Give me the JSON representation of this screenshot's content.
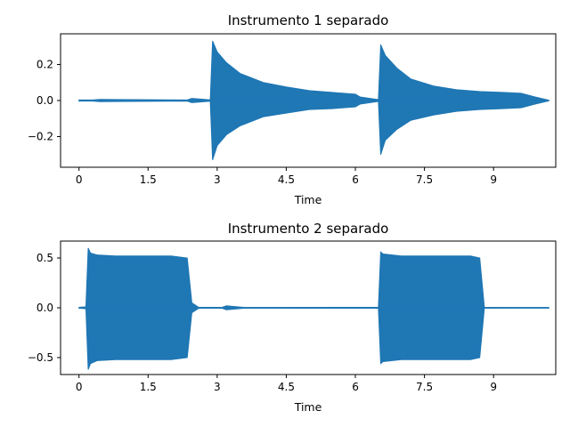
{
  "chart_data": [
    {
      "type": "line",
      "title": "Instrumento 1 separado",
      "xlabel": "Time",
      "ylabel": "",
      "xlim": [
        -0.4,
        10.35
      ],
      "ylim": [
        -0.37,
        0.37
      ],
      "xticks": [
        0,
        1.5,
        3,
        4.5,
        6,
        7.5,
        9
      ],
      "xtick_labels": [
        "0",
        "1.5",
        "3",
        "4.5",
        "6",
        "7.5",
        "9"
      ],
      "yticks": [
        0.2,
        0.0,
        -0.2
      ],
      "ytick_labels": [
        "0.2",
        "0.0",
        "−0.2"
      ],
      "color": "#1f77b4",
      "series": [
        {
          "style": "waveform",
          "x": [
            0,
            0.3,
            0.45,
            2.35,
            2.45,
            2.85,
            2.9,
            3.0,
            3.2,
            3.5,
            4.0,
            4.5,
            5.0,
            5.5,
            6.0,
            6.1,
            6.5,
            6.55,
            6.65,
            6.9,
            7.2,
            7.7,
            8.2,
            8.7,
            9.2,
            9.6,
            9.9,
            10.2
          ],
          "upper": [
            0.003,
            0.003,
            0.006,
            0.003,
            0.012,
            0.004,
            0.33,
            0.27,
            0.21,
            0.15,
            0.1,
            0.075,
            0.055,
            0.045,
            0.035,
            0.02,
            0.005,
            0.31,
            0.25,
            0.18,
            0.12,
            0.08,
            0.06,
            0.05,
            0.045,
            0.04,
            0.02,
            0.002
          ],
          "lower": [
            -0.003,
            -0.003,
            -0.006,
            -0.003,
            -0.012,
            -0.004,
            -0.33,
            -0.25,
            -0.19,
            -0.14,
            -0.09,
            -0.07,
            -0.05,
            -0.045,
            -0.035,
            -0.02,
            -0.005,
            -0.3,
            -0.22,
            -0.16,
            -0.11,
            -0.08,
            -0.06,
            -0.05,
            -0.045,
            -0.04,
            -0.02,
            -0.002
          ]
        }
      ]
    },
    {
      "type": "line",
      "title": "Instrumento 2 separado",
      "xlabel": "Time",
      "ylabel": "",
      "xlim": [
        -0.4,
        10.35
      ],
      "ylim": [
        -0.67,
        0.67
      ],
      "xticks": [
        0,
        1.5,
        3,
        4.5,
        6,
        7.5,
        9
      ],
      "xtick_labels": [
        "0",
        "1.5",
        "3",
        "4.5",
        "6",
        "7.5",
        "9"
      ],
      "yticks": [
        0.5,
        0.0,
        -0.5
      ],
      "ytick_labels": [
        "0.5",
        "0.0",
        "−0.5"
      ],
      "color": "#1f77b4",
      "series": [
        {
          "style": "waveform",
          "x": [
            0,
            0.15,
            0.2,
            0.25,
            0.4,
            0.8,
            1.2,
            1.6,
            2.0,
            2.35,
            2.45,
            2.6,
            3.1,
            3.2,
            3.6,
            6.5,
            6.55,
            6.6,
            7.0,
            7.5,
            8.0,
            8.5,
            8.7,
            8.8,
            9.5,
            10.2
          ],
          "upper": [
            0.004,
            0.01,
            0.6,
            0.55,
            0.53,
            0.52,
            0.52,
            0.52,
            0.52,
            0.5,
            0.05,
            0.004,
            0.004,
            0.02,
            0.003,
            0.005,
            0.56,
            0.54,
            0.52,
            0.52,
            0.52,
            0.52,
            0.5,
            0.005,
            0.003,
            0.003
          ],
          "lower": [
            -0.004,
            -0.01,
            -0.62,
            -0.56,
            -0.53,
            -0.52,
            -0.52,
            -0.52,
            -0.52,
            -0.5,
            -0.05,
            -0.004,
            -0.004,
            -0.02,
            -0.003,
            -0.005,
            -0.56,
            -0.54,
            -0.52,
            -0.52,
            -0.52,
            -0.52,
            -0.5,
            -0.005,
            -0.003,
            -0.003
          ]
        }
      ]
    }
  ]
}
